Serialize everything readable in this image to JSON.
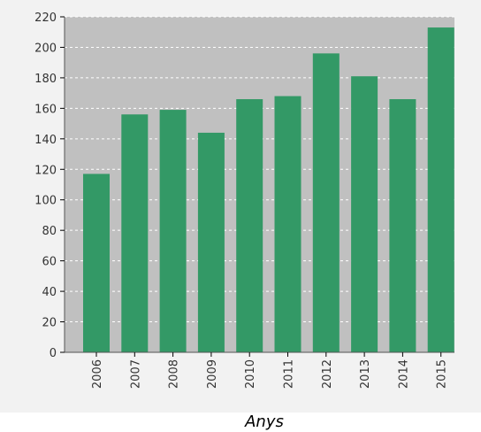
{
  "chart_data": {
    "type": "bar",
    "title": "",
    "xlabel": "Anys",
    "ylabel": "",
    "categories": [
      "2006",
      "2007",
      "2008",
      "2009",
      "2010",
      "2011",
      "2012",
      "2013",
      "2014",
      "2015"
    ],
    "values": [
      117,
      156,
      159,
      144,
      166,
      168,
      196,
      181,
      166,
      213
    ],
    "ylim": [
      0,
      220
    ],
    "y_ticks": [
      "0",
      "20",
      "40",
      "60",
      "80",
      "100",
      "120",
      "140",
      "160",
      "180",
      "200",
      "220"
    ],
    "grid": true,
    "legend": "none",
    "colors": {
      "bar": "#339966",
      "plot_background": "#c0c0c0",
      "outer_background": "#f2f2f2",
      "gridline": "#ffffff"
    }
  }
}
